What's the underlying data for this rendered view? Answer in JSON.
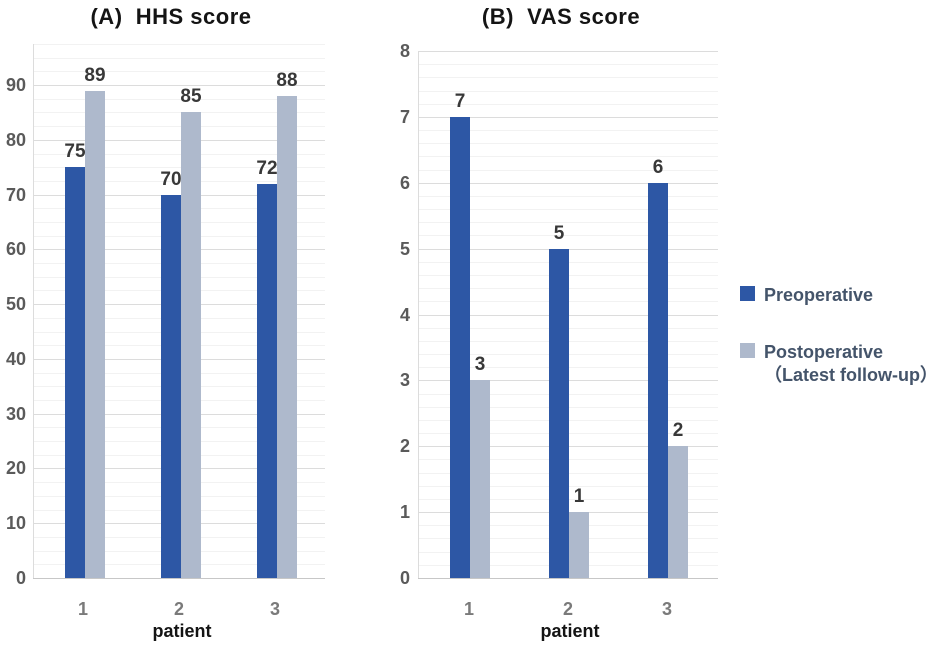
{
  "figure": {
    "background": "#ffffff",
    "series_colors": [
      "#2d57a5",
      "#aeb9cc"
    ],
    "legend_text_color": "#44546a"
  },
  "legend": {
    "position": "right",
    "items": [
      {
        "label": "Preoperative",
        "color": "#2d57a5"
      },
      {
        "label": "Postoperative",
        "sublabel": "（Latest follow-up）",
        "color": "#aeb9cc"
      }
    ]
  },
  "chart_data": [
    {
      "id": "hhs-score",
      "type": "bar",
      "title": "(A)  HHS score",
      "xlabel": "patient",
      "categories": [
        "1",
        "2",
        "3"
      ],
      "series": [
        {
          "name": "Preoperative",
          "values": [
            75,
            70,
            72
          ]
        },
        {
          "name": "Postoperative (Latest follow-up)",
          "values": [
            89,
            85,
            88
          ]
        }
      ],
      "ylim": [
        0,
        97.5
      ],
      "yticks": [
        0,
        10,
        20,
        30,
        40,
        50,
        60,
        70,
        80,
        90
      ],
      "minor_gridline_step": 2.5,
      "grid": "horizontal",
      "data_labels": true,
      "legend_position": "outside-right"
    },
    {
      "id": "vas-score",
      "type": "bar",
      "title": "(B)  VAS score",
      "xlabel": "patient",
      "categories": [
        "1",
        "2",
        "3"
      ],
      "series": [
        {
          "name": "Preoperative",
          "values": [
            7,
            5,
            6
          ]
        },
        {
          "name": "Postoperative (Latest follow-up)",
          "values": [
            3,
            1,
            2
          ]
        }
      ],
      "ylim": [
        0,
        8
      ],
      "yticks": [
        0,
        1,
        2,
        3,
        4,
        5,
        6,
        7,
        8
      ],
      "minor_gridline_step": 0.2,
      "grid": "horizontal",
      "data_labels": true,
      "legend_position": "outside-right"
    }
  ]
}
